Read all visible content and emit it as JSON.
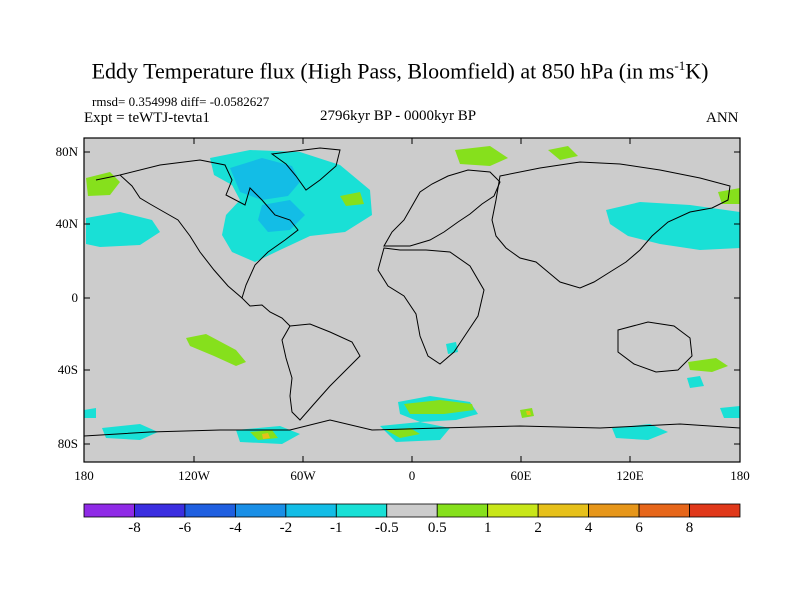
{
  "title": {
    "main": "Eddy Temperature flux (High Pass, Bloomfield) at 850 hPa (in ms",
    "sup": "-1",
    "end": "K)"
  },
  "subtitle": {
    "rmsd": "rmsd= 0.354998 diff= -0.0582627",
    "expt": "Expt = teWTJ-tevta1",
    "period": "2796kyr BP - 0000kyr BP",
    "season": "ANN"
  },
  "axes": {
    "lat_labels": [
      "80N",
      "40N",
      "0",
      "40S",
      "80S"
    ],
    "lat_values": [
      80,
      40,
      0,
      -40,
      -80
    ],
    "lon_labels": [
      "180",
      "120W",
      "60W",
      "0",
      "60E",
      "120E",
      "180"
    ],
    "lon_values": [
      -180,
      -120,
      -60,
      0,
      60,
      120,
      180
    ],
    "lon_range": [
      -180,
      180
    ],
    "lat_range": [
      -90,
      90
    ]
  },
  "colorbar": {
    "labels": [
      "-8",
      "-6",
      "-4",
      "-2",
      "-1",
      "-0.5",
      "0.5",
      "1",
      "2",
      "4",
      "6",
      "8"
    ],
    "colors": [
      "#8f2ae6",
      "#3b2ee0",
      "#1f5fe0",
      "#1a8fe6",
      "#13bde6",
      "#19e0d6",
      "#cccccc",
      "#86e01c",
      "#c8e619",
      "#e6c01a",
      "#e6961a",
      "#e6661a",
      "#e0381a"
    ]
  },
  "colors": {
    "ocean_land": "#cccccc",
    "neg_light": "#19e0d6",
    "neg_mid": "#13bde6",
    "pos_light": "#86e01c",
    "pos_mid": "#c8e619",
    "pos_warm": "#e6c01a"
  }
}
